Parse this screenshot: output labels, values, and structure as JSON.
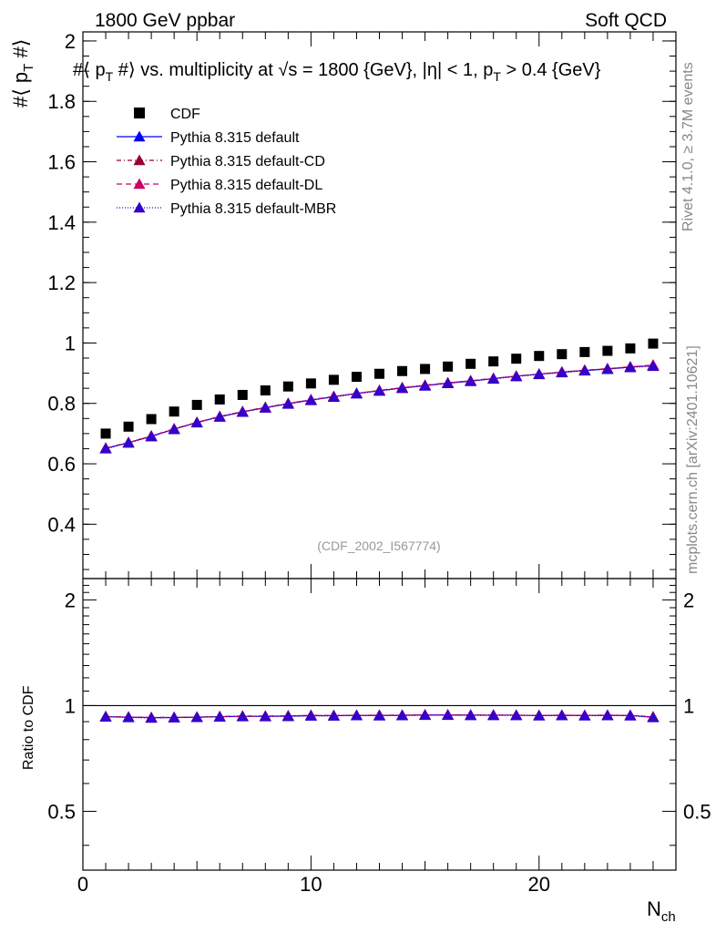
{
  "header": {
    "left": "1800 GeV ppbar",
    "right": "Soft QCD"
  },
  "side_labels": {
    "rivet": "Rivet 4.1.0, ≥ 3.7M events",
    "mcplots": "mcplots.cern.ch [arXiv:2401.10621]"
  },
  "reference": "(CDF_2002_I567774)",
  "chart_data": [
    {
      "type": "scatter",
      "panel": "main",
      "title": "#⟨ p_T #⟩ vs. multiplicity at √s = 1800 {GeV}, |η| < 1, p_T > 0.4 {GeV}",
      "title_parts": {
        "prefix": "#⟨ p",
        "sub": "T",
        "mid": " #⟩ vs. multiplicity at √s = 1800 {GeV}, |η| < 1, p",
        "sub2": "T",
        "suffix": " > 0.4 {GeV}"
      },
      "ylabel": "#⟨ p_T #⟩",
      "ylabel_parts": {
        "main": "#⟨ p",
        "sub": "T",
        "end": " #⟩"
      },
      "xlim": [
        0,
        26
      ],
      "ylim": [
        0.22,
        2.03
      ],
      "yticks": [
        0.4,
        0.6,
        0.8,
        1.0,
        1.2,
        1.4,
        1.6,
        1.8,
        2.0
      ],
      "ytick_labels": [
        "0.4",
        "0.6",
        "0.8",
        "1",
        "1.2",
        "1.4",
        "1.6",
        "1.8",
        "2"
      ],
      "x": [
        1,
        2,
        3,
        4,
        5,
        6,
        7,
        8,
        9,
        10,
        11,
        12,
        13,
        14,
        15,
        16,
        17,
        18,
        19,
        20,
        21,
        22,
        23,
        24,
        25
      ],
      "series": [
        {
          "name": "CDF",
          "marker": "square",
          "color": "#000000",
          "values": [
            0.7,
            0.723,
            0.748,
            0.773,
            0.795,
            0.813,
            0.828,
            0.843,
            0.856,
            0.866,
            0.878,
            0.888,
            0.898,
            0.907,
            0.914,
            0.922,
            0.931,
            0.939,
            0.948,
            0.957,
            0.963,
            0.97,
            0.974,
            0.982,
            0.998
          ]
        },
        {
          "name": "Pythia 8.315 default",
          "marker": "triangle",
          "color": "#0000ff",
          "dash": "",
          "values": [
            0.651,
            0.67,
            0.691,
            0.715,
            0.737,
            0.756,
            0.772,
            0.786,
            0.799,
            0.811,
            0.822,
            0.833,
            0.842,
            0.851,
            0.859,
            0.867,
            0.874,
            0.882,
            0.89,
            0.897,
            0.903,
            0.909,
            0.914,
            0.92,
            0.925
          ]
        },
        {
          "name": "Pythia 8.315 default-CD",
          "marker": "triangle",
          "color": "#990033",
          "dash": "5,3,1,3",
          "values": [
            0.652,
            0.671,
            0.692,
            0.716,
            0.737,
            0.757,
            0.773,
            0.787,
            0.8,
            0.812,
            0.823,
            0.833,
            0.843,
            0.852,
            0.86,
            0.868,
            0.875,
            0.883,
            0.89,
            0.897,
            0.904,
            0.91,
            0.915,
            0.921,
            0.927
          ]
        },
        {
          "name": "Pythia 8.315 default-DL",
          "marker": "triangle",
          "color": "#cc0066",
          "dash": "6,4",
          "values": [
            0.651,
            0.67,
            0.692,
            0.715,
            0.737,
            0.756,
            0.772,
            0.786,
            0.8,
            0.812,
            0.823,
            0.833,
            0.843,
            0.852,
            0.86,
            0.868,
            0.875,
            0.883,
            0.89,
            0.897,
            0.904,
            0.91,
            0.915,
            0.921,
            0.926
          ]
        },
        {
          "name": "Pythia 8.315 default-MBR",
          "marker": "triangle",
          "color": "#3300cc",
          "dash": "1,2",
          "values": [
            0.65,
            0.669,
            0.69,
            0.714,
            0.736,
            0.755,
            0.771,
            0.785,
            0.798,
            0.81,
            0.821,
            0.832,
            0.841,
            0.85,
            0.858,
            0.866,
            0.873,
            0.881,
            0.889,
            0.896,
            0.902,
            0.908,
            0.913,
            0.919,
            0.923
          ]
        }
      ],
      "legend_position": "top-left"
    },
    {
      "type": "line",
      "panel": "ratio",
      "ylabel": "Ratio to CDF",
      "xlabel": "N_ch",
      "xlabel_parts": {
        "main": "N",
        "sub": "ch"
      },
      "xlim": [
        0,
        26
      ],
      "ylim": [
        0.34,
        2.3
      ],
      "yticks": [
        0.5,
        1.0,
        2.0
      ],
      "ytick_labels": [
        "0.5",
        "1",
        "2"
      ],
      "xticks": [
        0,
        10,
        20
      ],
      "xtick_labels": [
        "0",
        "10",
        "20"
      ],
      "reference_value": 1.0,
      "x": [
        1,
        2,
        3,
        4,
        5,
        6,
        7,
        8,
        9,
        10,
        11,
        12,
        13,
        14,
        15,
        16,
        17,
        18,
        19,
        20,
        21,
        22,
        23,
        24,
        25
      ],
      "series": [
        {
          "name": "Pythia 8.315 default",
          "color": "#0000ff",
          "dash": "",
          "values": [
            0.93,
            0.927,
            0.924,
            0.925,
            0.927,
            0.93,
            0.932,
            0.932,
            0.933,
            0.936,
            0.936,
            0.938,
            0.937,
            0.938,
            0.94,
            0.94,
            0.939,
            0.939,
            0.939,
            0.937,
            0.938,
            0.937,
            0.938,
            0.937,
            0.927
          ]
        },
        {
          "name": "Pythia 8.315 default-CD",
          "color": "#990033",
          "dash": "5,3,1,3",
          "values": [
            0.931,
            0.928,
            0.925,
            0.926,
            0.927,
            0.931,
            0.934,
            0.934,
            0.935,
            0.938,
            0.937,
            0.938,
            0.939,
            0.939,
            0.941,
            0.941,
            0.94,
            0.94,
            0.939,
            0.937,
            0.939,
            0.938,
            0.939,
            0.938,
            0.929
          ]
        },
        {
          "name": "Pythia 8.315 default-DL",
          "color": "#cc0066",
          "dash": "6,4",
          "values": [
            0.93,
            0.927,
            0.925,
            0.925,
            0.927,
            0.93,
            0.932,
            0.932,
            0.935,
            0.938,
            0.937,
            0.938,
            0.939,
            0.939,
            0.941,
            0.941,
            0.94,
            0.94,
            0.939,
            0.937,
            0.939,
            0.938,
            0.939,
            0.938,
            0.928
          ]
        },
        {
          "name": "Pythia 8.315 default-MBR",
          "color": "#3300cc",
          "dash": "1,2",
          "values": [
            0.929,
            0.925,
            0.922,
            0.924,
            0.926,
            0.929,
            0.931,
            0.931,
            0.932,
            0.935,
            0.935,
            0.937,
            0.936,
            0.937,
            0.939,
            0.939,
            0.938,
            0.938,
            0.938,
            0.936,
            0.937,
            0.936,
            0.937,
            0.936,
            0.925
          ]
        }
      ]
    }
  ]
}
